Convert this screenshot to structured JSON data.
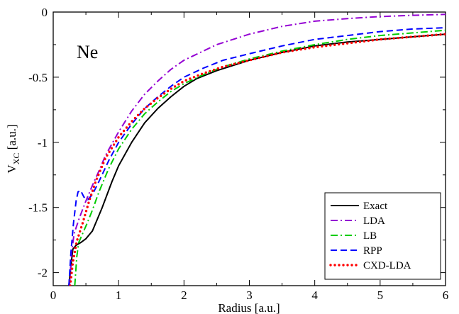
{
  "chart_data": {
    "type": "line",
    "title": "",
    "xlabel": "Radius [a.u.]",
    "ylabel_main": "V",
    "ylabel_sub": "XC",
    "ylabel_unit": " [a.u.]",
    "xlim": [
      0,
      6
    ],
    "ylim": [
      -2.1,
      0
    ],
    "xticks": [
      0,
      1,
      2,
      3,
      4,
      5,
      6
    ],
    "yticks": [
      0,
      -0.5,
      -1,
      -1.5,
      -2
    ],
    "xtick_labels": [
      "0",
      "1",
      "2",
      "3",
      "4",
      "5",
      "6"
    ],
    "ytick_labels": [
      "0",
      "-0.5",
      "-1",
      "-1.5",
      "-2"
    ],
    "grid": false,
    "legend_position": "bottom-right",
    "annotation": "Ne",
    "series": [
      {
        "name": "Exact",
        "color": "#000000",
        "dash": "solid",
        "points": [
          [
            0.24,
            -2.1
          ],
          [
            0.27,
            -1.95
          ],
          [
            0.3,
            -1.82
          ],
          [
            0.35,
            -1.79
          ],
          [
            0.42,
            -1.77
          ],
          [
            0.5,
            -1.74
          ],
          [
            0.6,
            -1.68
          ],
          [
            0.75,
            -1.5
          ],
          [
            0.9,
            -1.3
          ],
          [
            1.0,
            -1.18
          ],
          [
            1.2,
            -1.0
          ],
          [
            1.4,
            -0.85
          ],
          [
            1.6,
            -0.74
          ],
          [
            1.8,
            -0.65
          ],
          [
            2.0,
            -0.57
          ],
          [
            2.2,
            -0.51
          ],
          [
            2.5,
            -0.45
          ],
          [
            3.0,
            -0.37
          ],
          [
            3.5,
            -0.31
          ],
          [
            4.0,
            -0.26
          ],
          [
            4.5,
            -0.23
          ],
          [
            5.0,
            -0.21
          ],
          [
            5.5,
            -0.19
          ],
          [
            6.0,
            -0.17
          ]
        ]
      },
      {
        "name": "LDA",
        "color": "#9400d3",
        "dash": "dashdot",
        "points": [
          [
            0.25,
            -2.1
          ],
          [
            0.28,
            -1.85
          ],
          [
            0.32,
            -1.7
          ],
          [
            0.4,
            -1.58
          ],
          [
            0.5,
            -1.45
          ],
          [
            0.6,
            -1.33
          ],
          [
            0.7,
            -1.22
          ],
          [
            0.8,
            -1.1
          ],
          [
            1.0,
            -0.92
          ],
          [
            1.2,
            -0.76
          ],
          [
            1.4,
            -0.63
          ],
          [
            1.6,
            -0.53
          ],
          [
            1.8,
            -0.44
          ],
          [
            2.0,
            -0.37
          ],
          [
            2.5,
            -0.25
          ],
          [
            3.0,
            -0.17
          ],
          [
            3.5,
            -0.11
          ],
          [
            4.0,
            -0.07
          ],
          [
            4.5,
            -0.05
          ],
          [
            5.0,
            -0.035
          ],
          [
            5.5,
            -0.025
          ],
          [
            6.0,
            -0.018
          ]
        ]
      },
      {
        "name": "LB",
        "color": "#00cc00",
        "dash": "dashdot",
        "points": [
          [
            0.33,
            -2.1
          ],
          [
            0.36,
            -1.88
          ],
          [
            0.39,
            -1.77
          ],
          [
            0.45,
            -1.7
          ],
          [
            0.52,
            -1.62
          ],
          [
            0.6,
            -1.52
          ],
          [
            0.7,
            -1.38
          ],
          [
            0.85,
            -1.2
          ],
          [
            1.0,
            -1.05
          ],
          [
            1.2,
            -0.9
          ],
          [
            1.4,
            -0.78
          ],
          [
            1.6,
            -0.69
          ],
          [
            1.8,
            -0.61
          ],
          [
            2.0,
            -0.55
          ],
          [
            2.3,
            -0.48
          ],
          [
            2.6,
            -0.42
          ],
          [
            3.0,
            -0.36
          ],
          [
            3.5,
            -0.3
          ],
          [
            4.0,
            -0.25
          ],
          [
            4.5,
            -0.21
          ],
          [
            5.0,
            -0.18
          ],
          [
            5.5,
            -0.16
          ],
          [
            6.0,
            -0.14
          ]
        ]
      },
      {
        "name": "RPP",
        "color": "#0000ff",
        "dash": "dashed",
        "points": [
          [
            0.24,
            -2.1
          ],
          [
            0.27,
            -1.85
          ],
          [
            0.31,
            -1.62
          ],
          [
            0.35,
            -1.45
          ],
          [
            0.38,
            -1.38
          ],
          [
            0.42,
            -1.37
          ],
          [
            0.47,
            -1.42
          ],
          [
            0.53,
            -1.44
          ],
          [
            0.6,
            -1.4
          ],
          [
            0.7,
            -1.3
          ],
          [
            0.85,
            -1.14
          ],
          [
            1.0,
            -1.0
          ],
          [
            1.2,
            -0.86
          ],
          [
            1.4,
            -0.74
          ],
          [
            1.6,
            -0.65
          ],
          [
            1.8,
            -0.57
          ],
          [
            2.0,
            -0.5
          ],
          [
            2.3,
            -0.43
          ],
          [
            2.6,
            -0.37
          ],
          [
            3.0,
            -0.32
          ],
          [
            3.5,
            -0.26
          ],
          [
            4.0,
            -0.21
          ],
          [
            4.5,
            -0.18
          ],
          [
            5.0,
            -0.15
          ],
          [
            5.5,
            -0.13
          ],
          [
            6.0,
            -0.12
          ]
        ]
      },
      {
        "name": "CXD-LDA",
        "color": "#ff0000",
        "dash": "dotted",
        "points": [
          [
            0.26,
            -2.1
          ],
          [
            0.3,
            -1.92
          ],
          [
            0.36,
            -1.76
          ],
          [
            0.45,
            -1.62
          ],
          [
            0.55,
            -1.45
          ],
          [
            0.65,
            -1.3
          ],
          [
            0.8,
            -1.12
          ],
          [
            1.0,
            -0.96
          ],
          [
            1.2,
            -0.84
          ],
          [
            1.4,
            -0.74
          ],
          [
            1.6,
            -0.66
          ],
          [
            1.8,
            -0.59
          ],
          [
            2.0,
            -0.53
          ],
          [
            2.3,
            -0.47
          ],
          [
            2.6,
            -0.42
          ],
          [
            3.0,
            -0.37
          ],
          [
            3.5,
            -0.31
          ],
          [
            4.0,
            -0.27
          ],
          [
            4.5,
            -0.24
          ],
          [
            5.0,
            -0.21
          ],
          [
            5.5,
            -0.19
          ],
          [
            6.0,
            -0.17
          ]
        ]
      }
    ]
  }
}
